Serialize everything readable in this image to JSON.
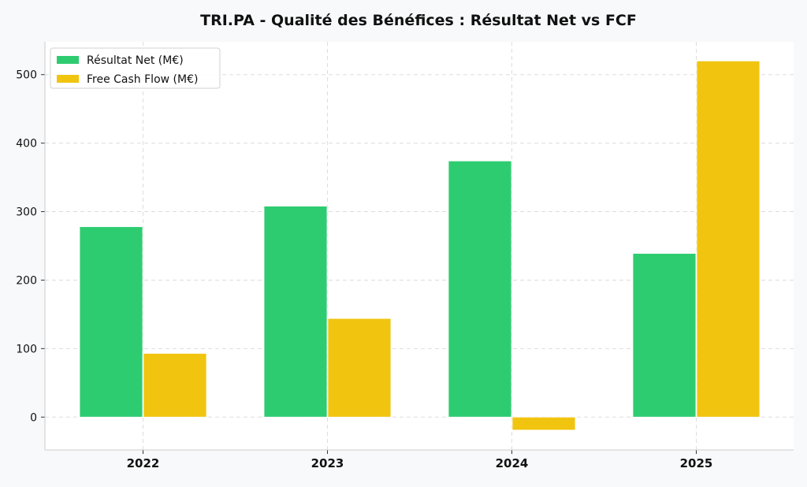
{
  "chart_data": {
    "type": "bar",
    "title": "TRI.PA - Qualité des Bénéfices : Résultat Net vs FCF",
    "xlabel": "",
    "ylabel": "",
    "categories": [
      "2022",
      "2023",
      "2024",
      "2025"
    ],
    "series": [
      {
        "name": "Résultat Net (M€)",
        "values": [
          278,
          308,
          374,
          239
        ],
        "color": "#2ecc71"
      },
      {
        "name": "Free Cash Flow (M€)",
        "values": [
          93,
          144,
          -19,
          520
        ],
        "color": "#f1c40f"
      }
    ],
    "ylim": [
      -48,
      548
    ],
    "yticks": [
      0,
      100,
      200,
      300,
      400,
      500
    ],
    "grid": true,
    "legend_position": "top-left"
  }
}
